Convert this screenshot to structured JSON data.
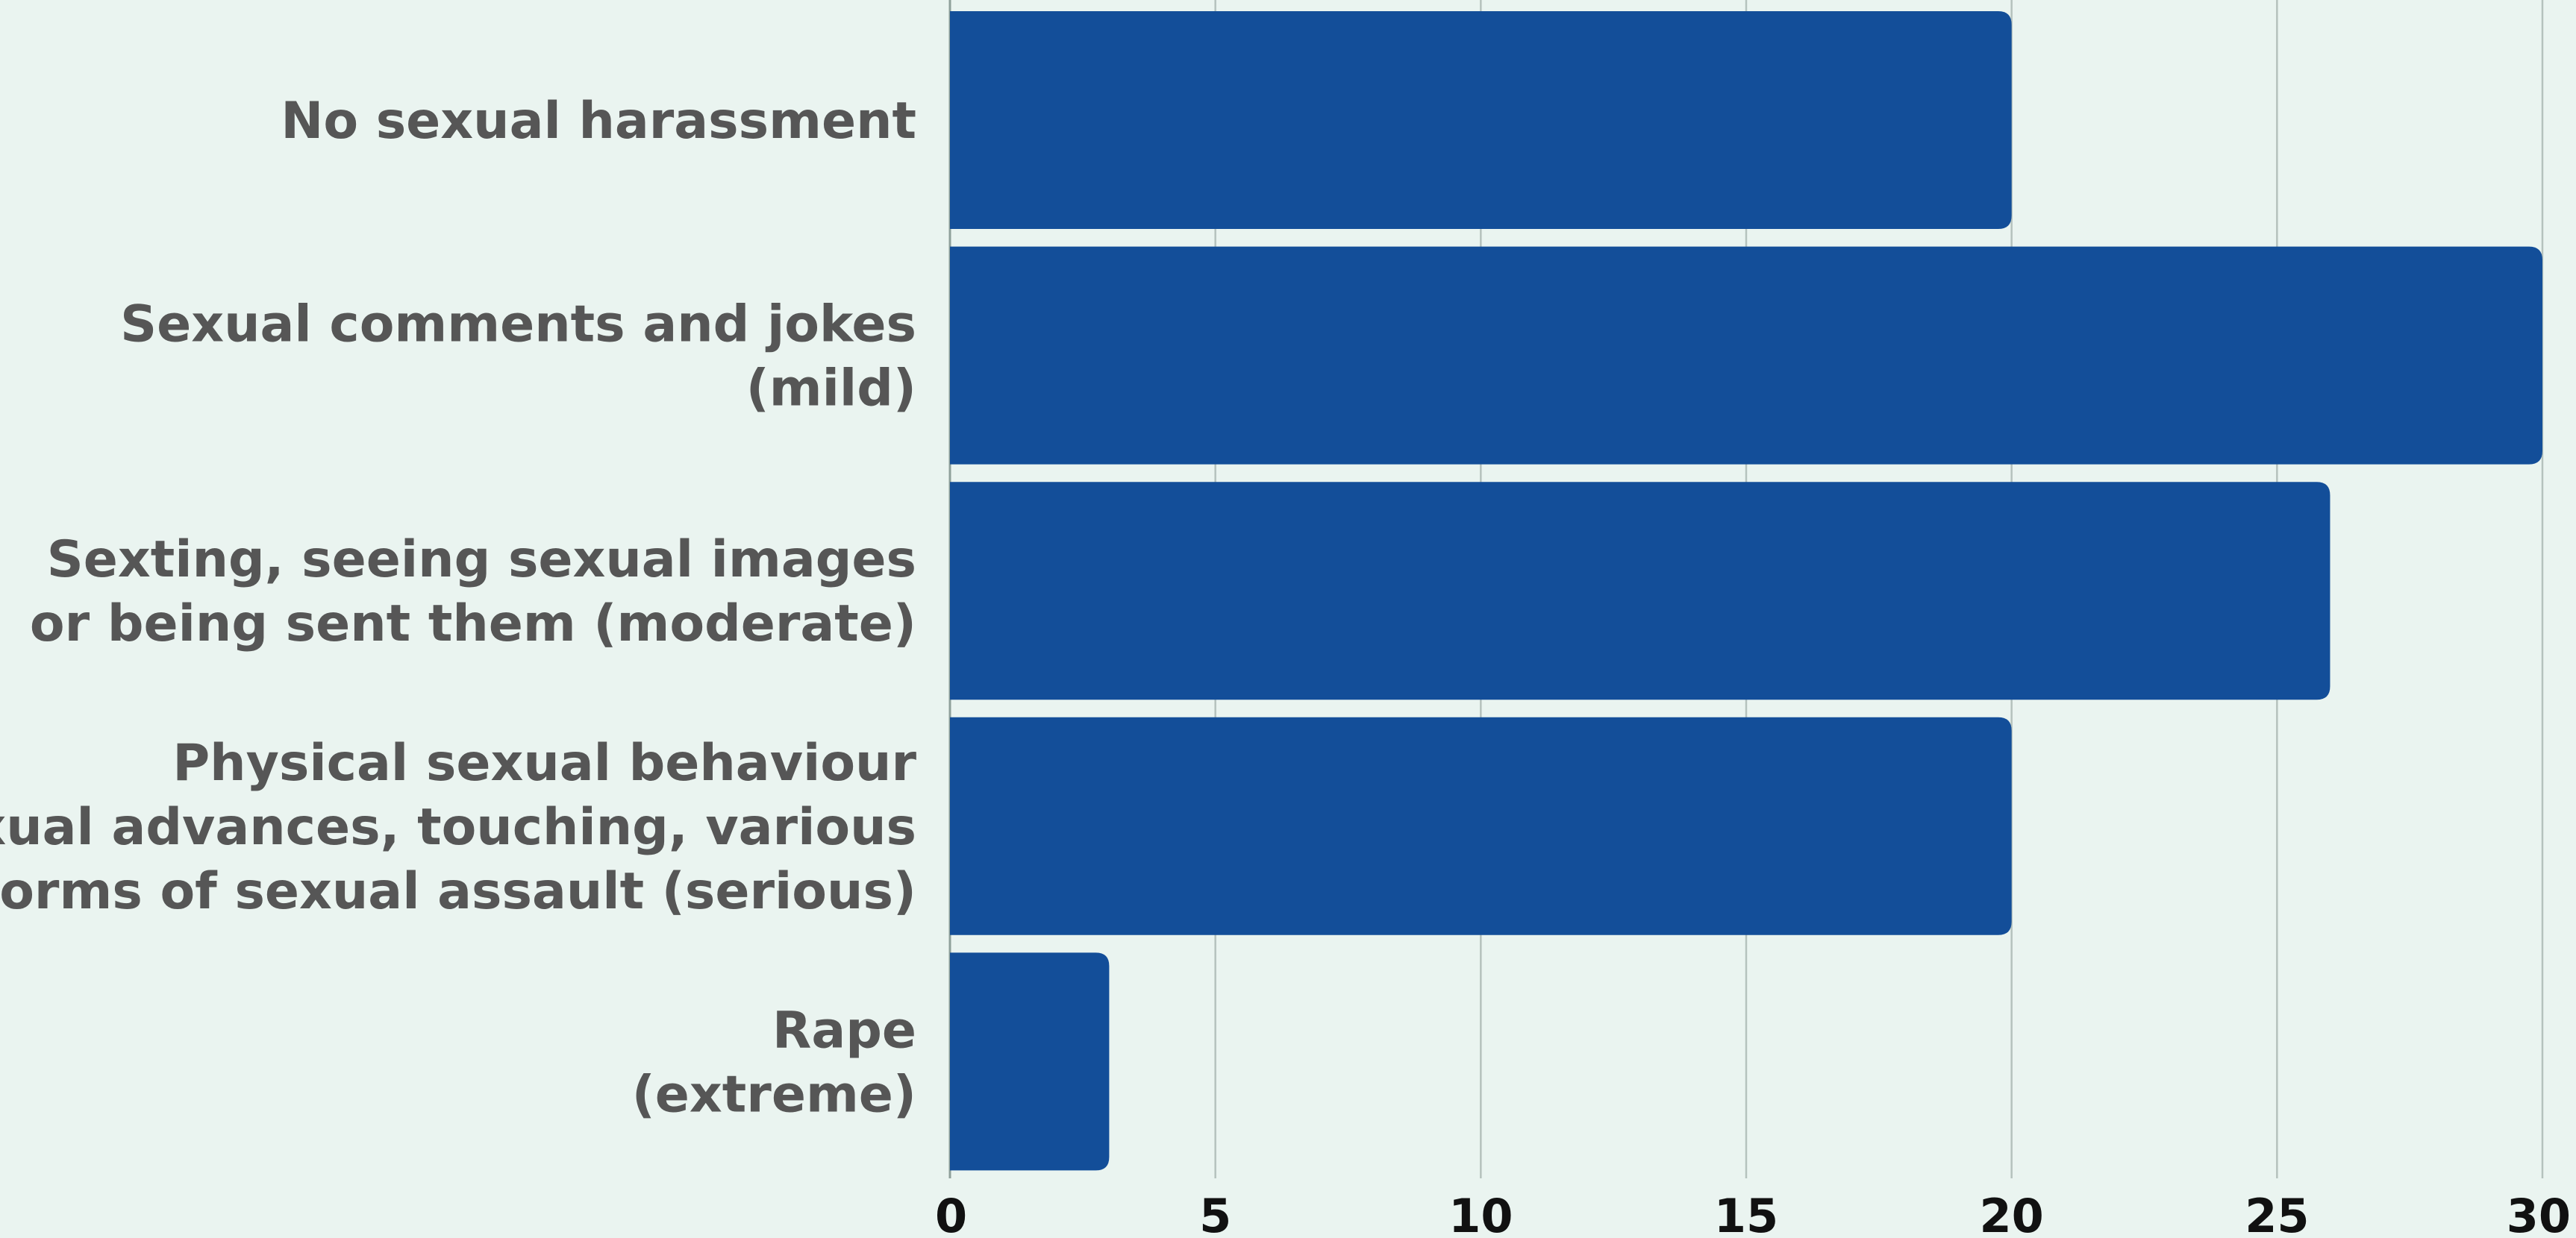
{
  "chart_data": {
    "type": "bar",
    "orientation": "horizontal",
    "categories": [
      [
        "No sexual harassment"
      ],
      [
        "Sexual comments and jokes",
        "(mild)"
      ],
      [
        "Sexting, seeing sexual images",
        "or being sent them (moderate)"
      ],
      [
        "Physical sexual behaviour",
        "sexual advances, touching, various",
        "forms of sexual assault (serious)"
      ],
      [
        "Rape",
        "(extreme)"
      ]
    ],
    "values": [
      20,
      30,
      26,
      20,
      3
    ],
    "xlim": [
      0,
      30
    ],
    "xticks": [
      0,
      5,
      10,
      15,
      20,
      25,
      30
    ],
    "title": "",
    "xlabel": "",
    "ylabel": "",
    "grid": "vertical",
    "legend": "none",
    "colors": {
      "bar": "#134e99",
      "background": "#eaf4f0",
      "grid": "#b5c2bd",
      "category_text": "#565656",
      "tick_text": "#111111"
    }
  }
}
